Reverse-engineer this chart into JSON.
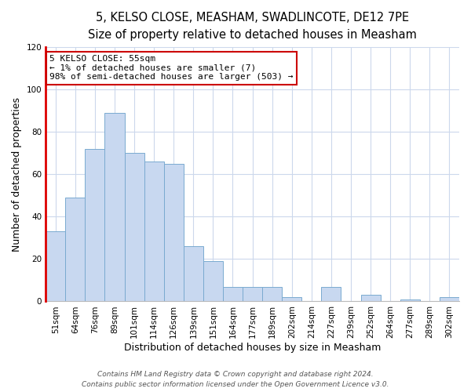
{
  "title": "5, KELSO CLOSE, MEASHAM, SWADLINCOTE, DE12 7PE",
  "subtitle": "Size of property relative to detached houses in Measham",
  "xlabel": "Distribution of detached houses by size in Measham",
  "ylabel": "Number of detached properties",
  "bar_labels": [
    "51sqm",
    "64sqm",
    "76sqm",
    "89sqm",
    "101sqm",
    "114sqm",
    "126sqm",
    "139sqm",
    "151sqm",
    "164sqm",
    "177sqm",
    "189sqm",
    "202sqm",
    "214sqm",
    "227sqm",
    "239sqm",
    "252sqm",
    "264sqm",
    "277sqm",
    "289sqm",
    "302sqm"
  ],
  "bar_values": [
    33,
    49,
    72,
    89,
    70,
    66,
    65,
    26,
    19,
    7,
    7,
    7,
    2,
    0,
    7,
    0,
    3,
    0,
    1,
    0,
    2
  ],
  "bar_color": "#c8d8f0",
  "bar_edge_color": "#7aaad0",
  "highlight_color": "#dd0000",
  "ylim": [
    0,
    120
  ],
  "yticks": [
    0,
    20,
    40,
    60,
    80,
    100,
    120
  ],
  "annotation_title": "5 KELSO CLOSE: 55sqm",
  "annotation_line1": "← 1% of detached houses are smaller (7)",
  "annotation_line2": "98% of semi-detached houses are larger (503) →",
  "annotation_box_color": "#ffffff",
  "annotation_border_color": "#cc0000",
  "footer_line1": "Contains HM Land Registry data © Crown copyright and database right 2024.",
  "footer_line2": "Contains public sector information licensed under the Open Government Licence v3.0.",
  "background_color": "#ffffff",
  "grid_color": "#ccd8ec",
  "title_fontsize": 10.5,
  "subtitle_fontsize": 9.5,
  "axis_label_fontsize": 9,
  "tick_fontsize": 7.5,
  "footer_fontsize": 6.5,
  "annotation_fontsize": 8
}
